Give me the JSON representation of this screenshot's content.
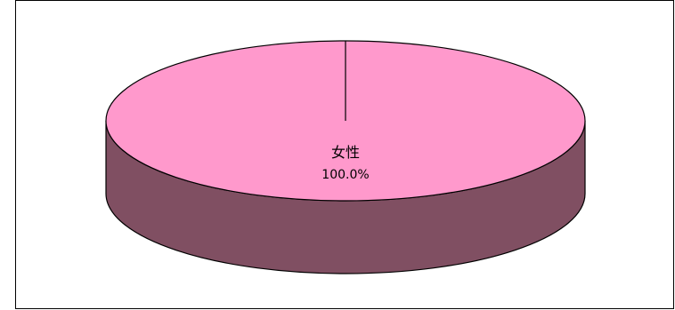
{
  "chart_data": {
    "type": "pie",
    "title": "",
    "categories": [
      "女性"
    ],
    "values": [
      100.0
    ],
    "labels": [
      {
        "name": "女性",
        "value_text": "100.0%"
      }
    ],
    "colors": {
      "top": "#ff99cc",
      "side": "#804f62",
      "edge": "#000000"
    },
    "three_d": true,
    "legend": "none"
  }
}
